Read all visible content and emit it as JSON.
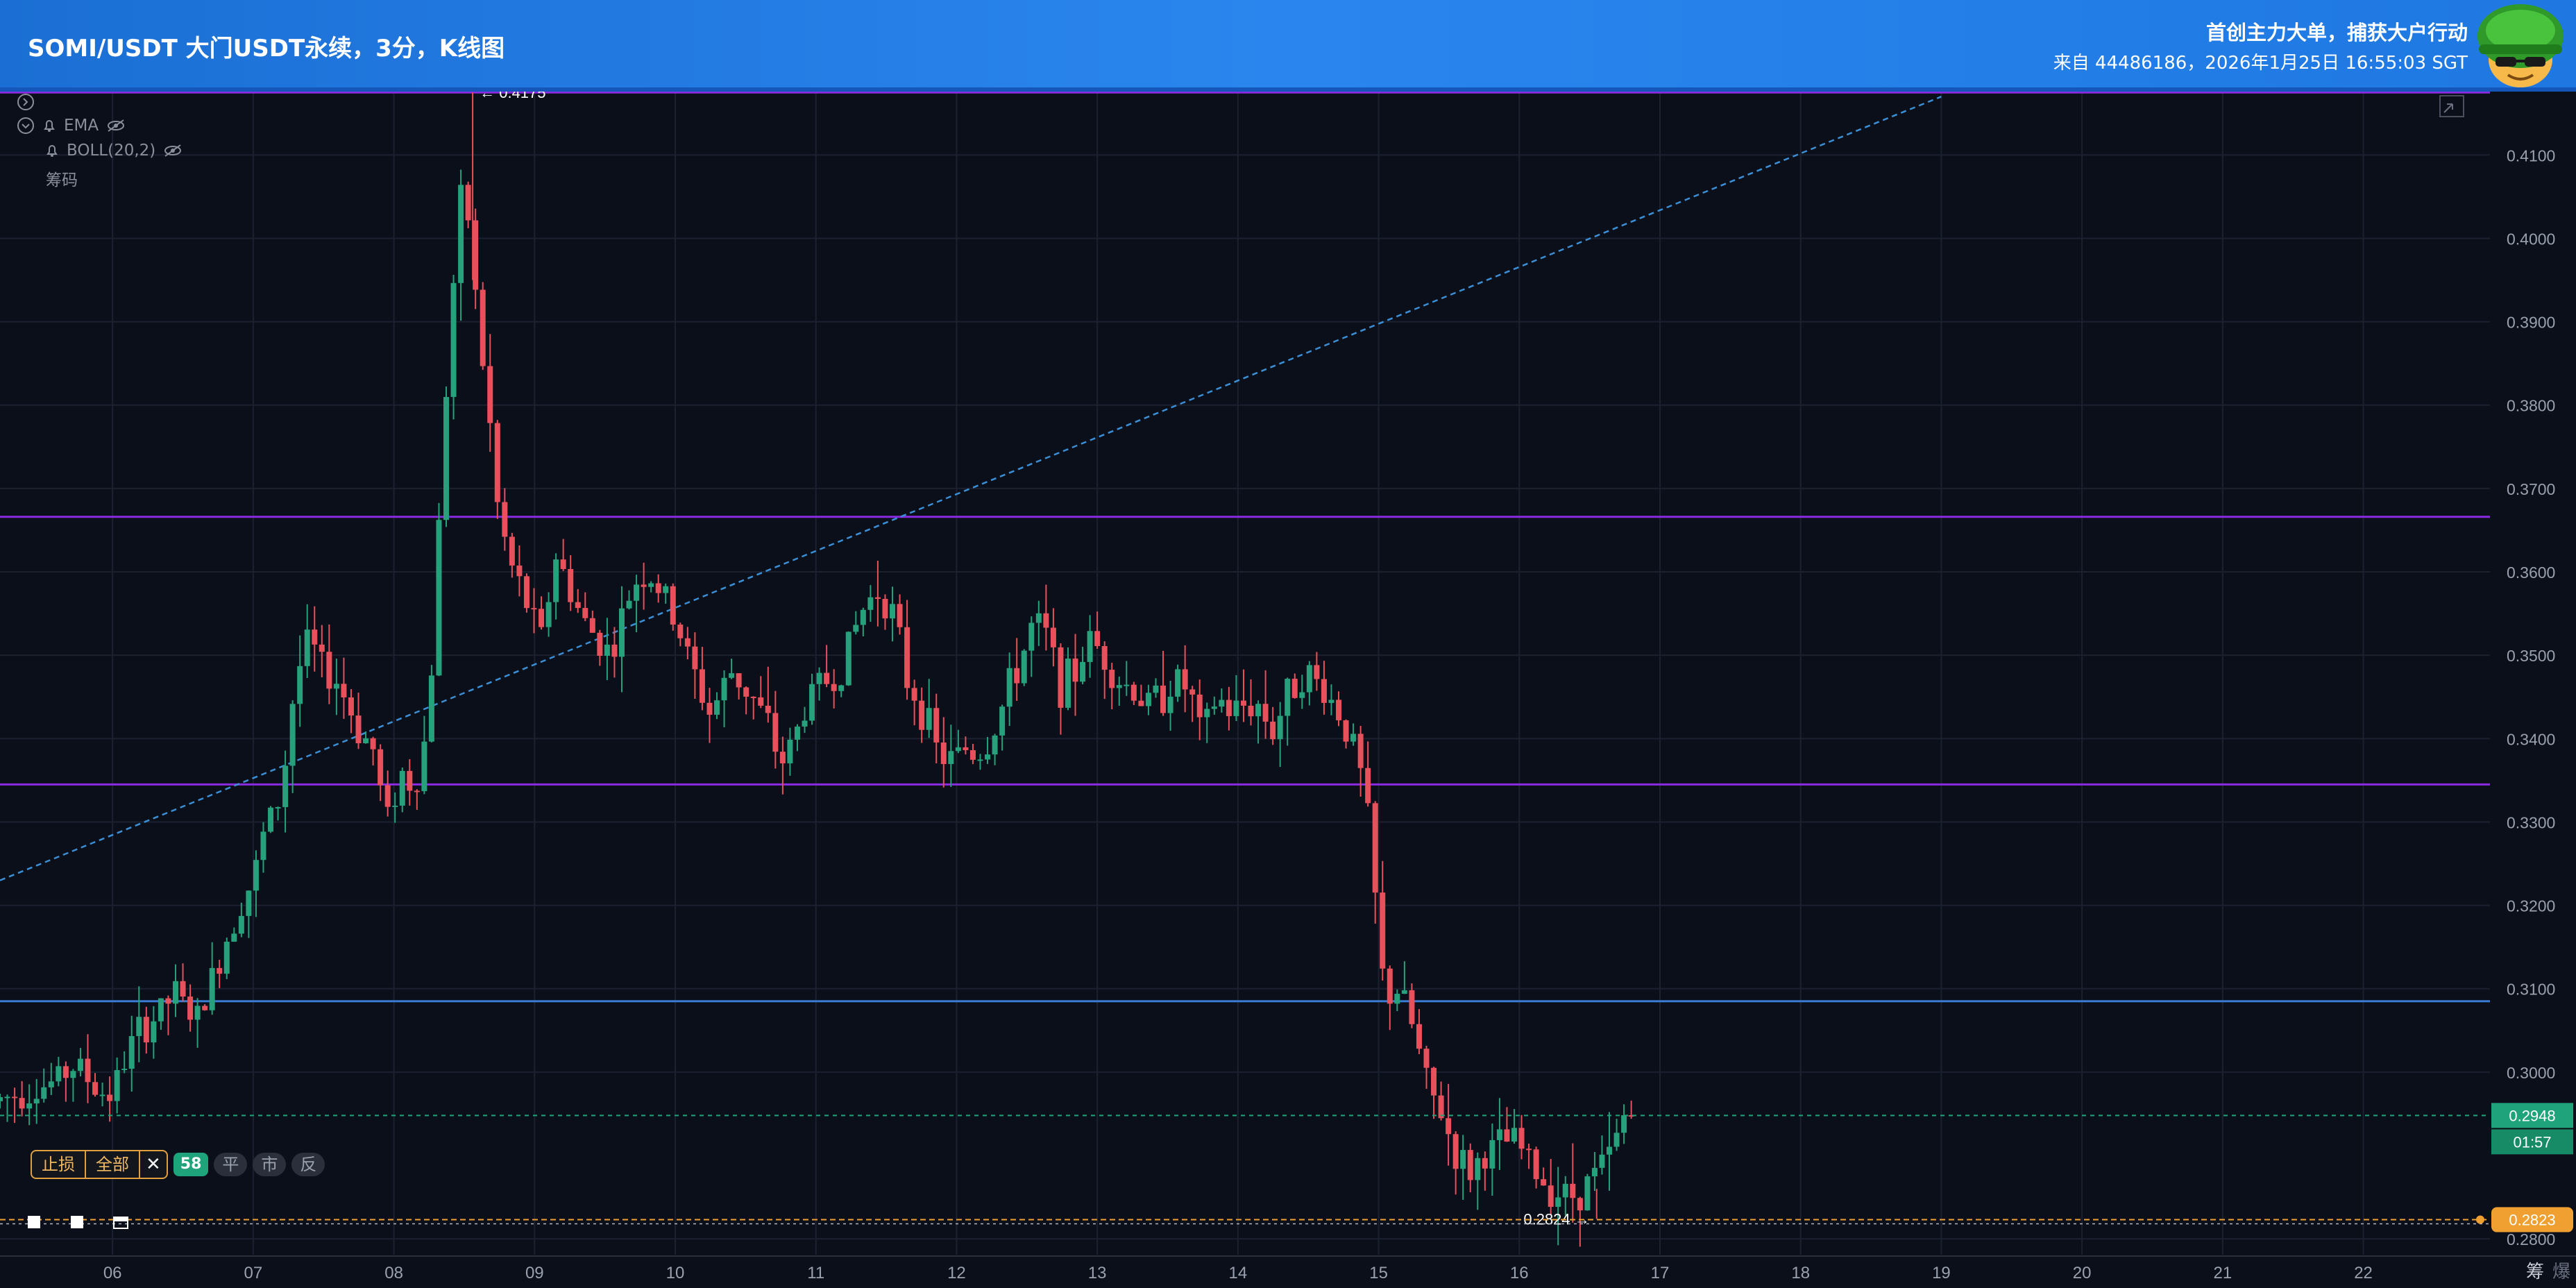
{
  "header": {
    "title": "SOMI/USDT 大门USDT永续，3分，K线图",
    "slogan": "首创主力大单，捕获大户行动",
    "source": "来自 44486186，2026年1月25日 16:55:03 SGT"
  },
  "indicators": {
    "ema": "EMA",
    "boll": "BOLL(20,2)",
    "chips": "筹码"
  },
  "order_bar": {
    "stop_loss": "止损",
    "all": "全部",
    "close_icon": "✕",
    "qty": "58",
    "flat": "平",
    "market": "市",
    "reverse": "反"
  },
  "corner": {
    "left": "筹",
    "right": "爆"
  },
  "colors": {
    "up": "#26a17b",
    "down": "#e8505b",
    "purple_level": "#8a2be2",
    "blue_level": "#3a7bd5",
    "last_price": "#1fa37a",
    "order_price": "#f0a030",
    "trend": "#3a8fd6"
  },
  "chart_data": {
    "type": "candlestick",
    "symbol": "SOMI/USDT",
    "interval": "3m",
    "ylim": [
      0.2781,
      0.4176
    ],
    "y_ticks": [
      "0.2800",
      "0.3000",
      "0.3100",
      "0.3200",
      "0.3300",
      "0.3400",
      "0.3500",
      "0.3600",
      "0.3700",
      "0.3800",
      "0.3900",
      "0.4000",
      "0.4100"
    ],
    "x_ticks": [
      "06",
      "07",
      "08",
      "09",
      "10",
      "11",
      "12",
      "13",
      "14",
      "15",
      "16",
      "17",
      "18",
      "19",
      "20",
      "21",
      "22"
    ],
    "x_range": [
      5.2,
      22.9
    ],
    "high_label": "0.4175",
    "low_label": "0.2824",
    "last_price": "0.2948",
    "countdown": "01:57",
    "order_price": "0.2823",
    "horizontal_levels": [
      {
        "price": 0.4175,
        "color": "purple"
      },
      {
        "price": 0.3666,
        "color": "purple"
      },
      {
        "price": 0.3345,
        "color": "purple"
      },
      {
        "price": 0.3085,
        "color": "blue"
      }
    ],
    "trendline": {
      "from": [
        5.2,
        0.323
      ],
      "to": [
        19.0,
        0.417
      ]
    },
    "path": [
      [
        5.2,
        0.2965
      ],
      [
        5.4,
        0.2975
      ],
      [
        5.6,
        0.2985
      ],
      [
        5.8,
        0.301
      ],
      [
        5.95,
        0.2975
      ],
      [
        6.05,
        0.2975
      ],
      [
        6.2,
        0.304
      ],
      [
        6.35,
        0.3065
      ],
      [
        6.5,
        0.3095
      ],
      [
        6.65,
        0.306
      ],
      [
        6.8,
        0.313
      ],
      [
        6.95,
        0.32
      ],
      [
        7.05,
        0.323
      ],
      [
        7.15,
        0.33
      ],
      [
        7.25,
        0.333
      ],
      [
        7.35,
        0.347
      ],
      [
        7.45,
        0.352
      ],
      [
        7.55,
        0.348
      ],
      [
        7.65,
        0.347
      ],
      [
        7.8,
        0.341
      ],
      [
        7.9,
        0.339
      ],
      [
        8.0,
        0.33
      ],
      [
        8.1,
        0.336
      ],
      [
        8.2,
        0.334
      ],
      [
        8.3,
        0.342
      ],
      [
        8.37,
        0.365
      ],
      [
        8.45,
        0.39
      ],
      [
        8.55,
        0.408
      ],
      [
        8.65,
        0.39
      ],
      [
        8.72,
        0.38
      ],
      [
        8.8,
        0.366
      ],
      [
        8.9,
        0.36
      ],
      [
        9.0,
        0.356
      ],
      [
        9.1,
        0.352
      ],
      [
        9.2,
        0.362
      ],
      [
        9.3,
        0.358
      ],
      [
        9.4,
        0.354
      ],
      [
        9.5,
        0.352
      ],
      [
        9.6,
        0.35
      ],
      [
        9.7,
        0.356
      ],
      [
        9.8,
        0.36
      ],
      [
        9.9,
        0.359
      ],
      [
        10.0,
        0.356
      ],
      [
        10.1,
        0.352
      ],
      [
        10.2,
        0.347
      ],
      [
        10.3,
        0.343
      ],
      [
        10.45,
        0.348
      ],
      [
        10.6,
        0.345
      ],
      [
        10.7,
        0.342
      ],
      [
        10.8,
        0.337
      ],
      [
        10.9,
        0.34
      ],
      [
        11.0,
        0.345
      ],
      [
        11.1,
        0.347
      ],
      [
        11.2,
        0.347
      ],
      [
        11.3,
        0.352
      ],
      [
        11.4,
        0.356
      ],
      [
        11.5,
        0.358
      ],
      [
        11.6,
        0.355
      ],
      [
        11.7,
        0.347
      ],
      [
        11.8,
        0.344
      ],
      [
        11.9,
        0.339
      ],
      [
        12.0,
        0.337
      ],
      [
        12.1,
        0.339
      ],
      [
        12.2,
        0.338
      ],
      [
        12.3,
        0.34
      ],
      [
        12.4,
        0.345
      ],
      [
        12.5,
        0.349
      ],
      [
        12.6,
        0.354
      ],
      [
        12.7,
        0.352
      ],
      [
        12.8,
        0.346
      ],
      [
        12.9,
        0.348
      ],
      [
        13.0,
        0.352
      ],
      [
        13.1,
        0.35
      ],
      [
        13.2,
        0.347
      ],
      [
        13.3,
        0.346
      ],
      [
        13.4,
        0.344
      ],
      [
        13.5,
        0.345
      ],
      [
        13.6,
        0.347
      ],
      [
        13.7,
        0.346
      ],
      [
        13.8,
        0.34
      ],
      [
        13.9,
        0.345
      ],
      [
        14.0,
        0.343
      ],
      [
        14.1,
        0.344
      ],
      [
        14.2,
        0.344
      ],
      [
        14.3,
        0.341
      ],
      [
        14.4,
        0.345
      ],
      [
        14.5,
        0.348
      ],
      [
        14.6,
        0.347
      ],
      [
        14.7,
        0.345
      ],
      [
        14.8,
        0.342
      ],
      [
        14.9,
        0.338
      ],
      [
        15.0,
        0.328
      ],
      [
        15.05,
        0.315
      ],
      [
        15.1,
        0.309
      ],
      [
        15.2,
        0.31
      ],
      [
        15.3,
        0.305
      ],
      [
        15.4,
        0.298
      ],
      [
        15.5,
        0.295
      ],
      [
        15.6,
        0.29
      ],
      [
        15.7,
        0.288
      ],
      [
        15.8,
        0.29
      ],
      [
        15.9,
        0.291
      ],
      [
        16.0,
        0.292
      ],
      [
        16.1,
        0.29
      ],
      [
        16.2,
        0.287
      ],
      [
        16.3,
        0.286
      ],
      [
        16.4,
        0.285
      ],
      [
        16.5,
        0.286
      ],
      [
        16.6,
        0.288
      ],
      [
        16.7,
        0.29
      ],
      [
        16.8,
        0.2948
      ]
    ]
  }
}
